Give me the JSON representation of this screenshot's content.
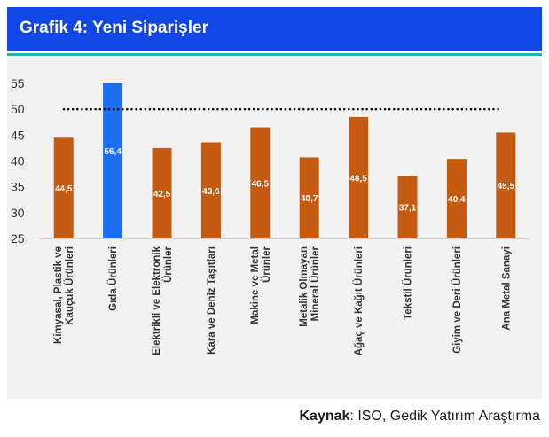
{
  "header": {
    "title": "Grafik 4: Yeni Siparişler"
  },
  "source": {
    "label": "Kaynak",
    "text": ": ISO, Gedik Yatırım Araştırma"
  },
  "colors": {
    "header_bg": "#1046e6",
    "accent_line": "#2ab39a",
    "bar_default": "#c55a11",
    "bar_highlight": "#1c6ef2",
    "threshold": "#000000"
  },
  "chart_data": {
    "type": "bar",
    "title": "Grafik 4: Yeni Siparişler",
    "xlabel": "",
    "ylabel": "",
    "ylim": [
      25,
      55
    ],
    "yticks": [
      25,
      30,
      35,
      40,
      45,
      50,
      55
    ],
    "reference_line": 50,
    "highlight_index": 1,
    "categories": [
      "Kimyasal, Plastik ve Kauçuk Ürünleri",
      "Gıda Ürünleri",
      "Elektrikli ve Elektronik Ürünler",
      "Kara ve Deniz Taşıtları",
      "Makine ve Metal Ürünler",
      "Metalik Olmayan Mineral Ürünler",
      "Ağaç ve Kağıt Ürünleri",
      "Tekstil Ürünleri",
      "Giyim ve Deri Ürünleri",
      "Ana Metal Sanayi"
    ],
    "values": [
      44.5,
      56.4,
      42.5,
      43.6,
      46.5,
      40.7,
      48.5,
      37.1,
      40.4,
      45.5
    ],
    "value_labels": [
      "44,5",
      "56,4",
      "42,5",
      "43,6",
      "46,5",
      "40,7",
      "48,5",
      "37,1",
      "40,4",
      "45,5"
    ],
    "label_lines": [
      [
        "Kimyasal, Plastik ve",
        "Kauçuk Ürünleri"
      ],
      [
        "Gıda Ürünleri"
      ],
      [
        "Elektrikli ve Elektronik",
        "Ürünler"
      ],
      [
        "Kara ve Deniz Taşıtları"
      ],
      [
        "Makine ve Metal",
        "Ürünler"
      ],
      [
        "Metalik Olmayan",
        "Mineral Ürünler"
      ],
      [
        "Ağaç ve Kağıt Ürünleri"
      ],
      [
        "Tekstil Ürünleri"
      ],
      [
        "Giyim ve Deri Ürünleri"
      ],
      [
        "Ana Metal Sanayi"
      ]
    ]
  }
}
